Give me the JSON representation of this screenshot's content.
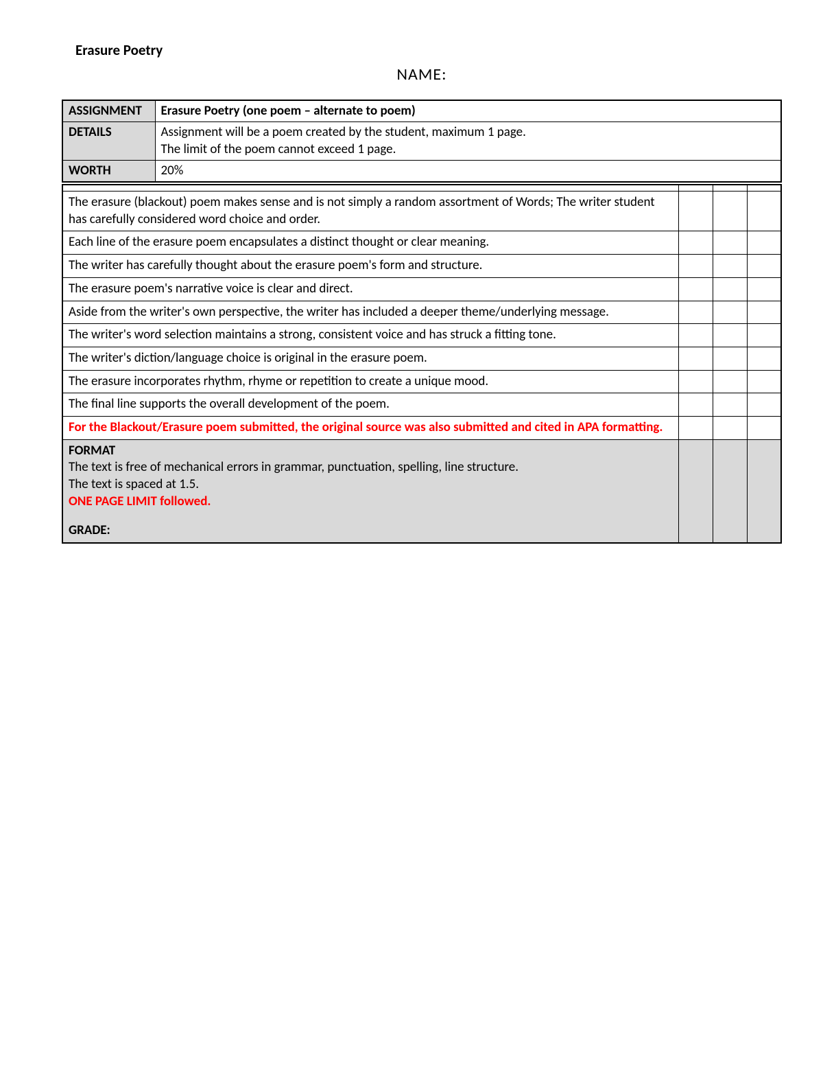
{
  "header": {
    "title": "Erasure Poetry",
    "name_label": "NAME:"
  },
  "info": {
    "rows": [
      {
        "label": "ASSIGNMENT",
        "value": "Erasure Poetry (one poem – alternate to poem)"
      },
      {
        "label": "DETAILS",
        "value": "Assignment will be a poem created by the student, maximum 1 page.\nThe limit of the poem cannot exceed 1 page."
      },
      {
        "label": "WORTH",
        "value": "20%"
      }
    ]
  },
  "rubric": {
    "criteria": [
      {
        "text": "The erasure (blackout) poem makes sense and is not simply a random assortment of Words; The writer student has carefully considered word choice and order.",
        "red": false
      },
      {
        "text": "Each line of the erasure poem encapsulates a distinct thought or clear meaning.",
        "red": false
      },
      {
        "text": "The writer has carefully thought about the erasure poem's form and structure.",
        "red": false
      },
      {
        "text": "The erasure poem's narrative voice is clear and direct.",
        "red": false
      },
      {
        "text": "Aside from the writer's own perspective, the writer has included a deeper theme/underlying message.",
        "red": false
      },
      {
        "text": "The writer's word selection maintains a strong, consistent voice and has struck a fitting tone.",
        "red": false
      },
      {
        "text": "The writer's diction/language choice is original in the erasure poem.",
        "red": false
      },
      {
        "text": "The erasure incorporates rhythm, rhyme or repetition to create a unique mood.",
        "red": false
      },
      {
        "text": "The final line supports the overall development of the poem.",
        "red": false
      },
      {
        "text": "For the Blackout/Erasure poem submitted, the original source was also submitted and cited in APA formatting.",
        "red": true
      }
    ],
    "format": {
      "heading": "FORMAT",
      "line1": "The text is free of mechanical errors in grammar, punctuation, spelling, line structure.",
      "line2": "The text is spaced at 1.5.",
      "line3": "ONE PAGE LIMIT followed.",
      "grade": "GRADE:"
    }
  },
  "style": {
    "header_gray": "#d9d9d9",
    "red": "#ff0000",
    "black": "#000000",
    "font_family": "Calibri",
    "title_fontsize": 21,
    "body_fontsize": 19,
    "name_fontsize": 24
  }
}
